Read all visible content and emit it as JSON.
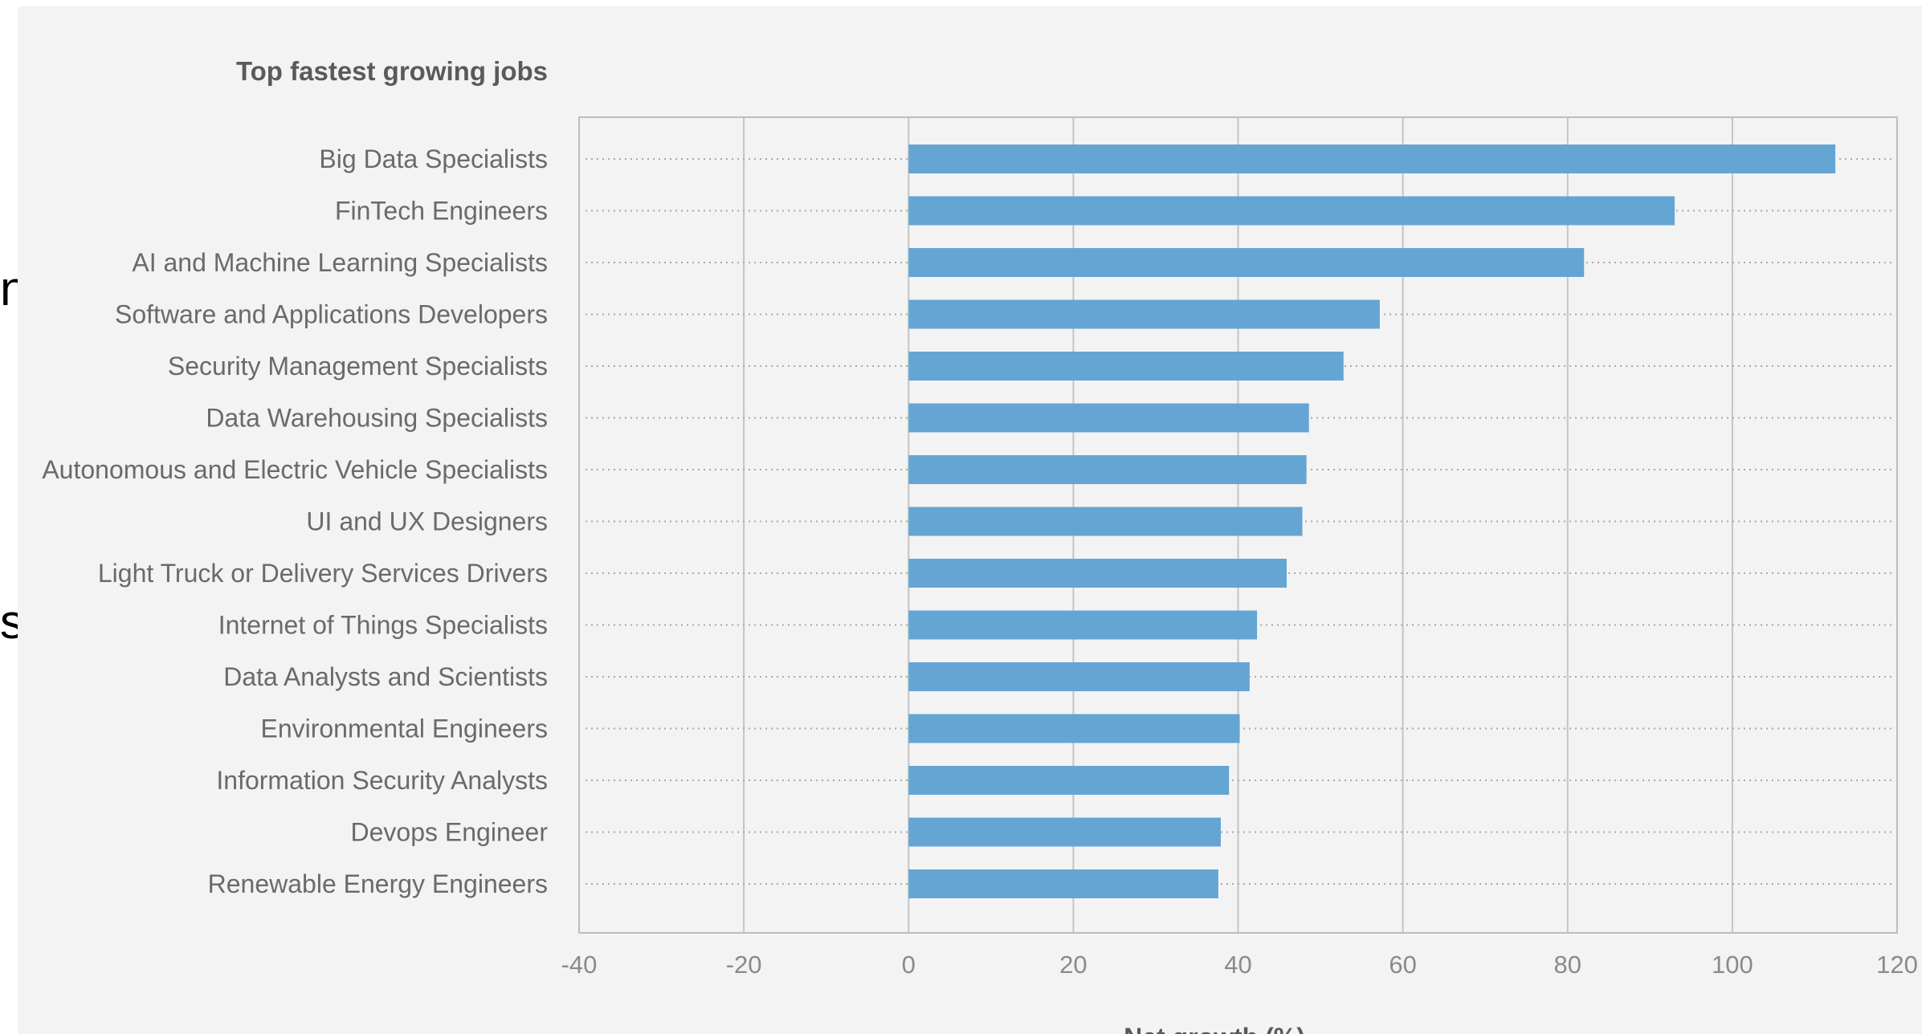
{
  "side_fragments": [
    "n",
    "skich"
  ],
  "chart_data": {
    "type": "bar",
    "orientation": "horizontal",
    "title": "Top fastest growing jobs",
    "xlabel": "Net growth (%)",
    "ylabel": "",
    "xlim": [
      -40,
      120
    ],
    "xticks": [
      -40,
      -20,
      0,
      20,
      40,
      60,
      80,
      100,
      120
    ],
    "grid": true,
    "categories": [
      "Big Data Specialists",
      "FinTech Engineers",
      "AI and Machine Learning Specialists",
      "Software and Applications Developers",
      "Security Management Specialists",
      "Data Warehousing Specialists",
      "Autonomous and Electric Vehicle Specialists",
      "UI and UX Designers",
      "Light Truck or Delivery Services Drivers",
      "Internet of Things Specialists",
      "Data Analysts and Scientists",
      "Environmental Engineers",
      "Information Security Analysts",
      "Devops Engineer",
      "Renewable Energy Engineers"
    ],
    "values": [
      112.5,
      93,
      82,
      57.2,
      52.8,
      48.6,
      48.3,
      47.8,
      45.9,
      42.3,
      41.4,
      40.2,
      38.9,
      37.9,
      37.6
    ],
    "bar_color": "#64a5d4"
  }
}
